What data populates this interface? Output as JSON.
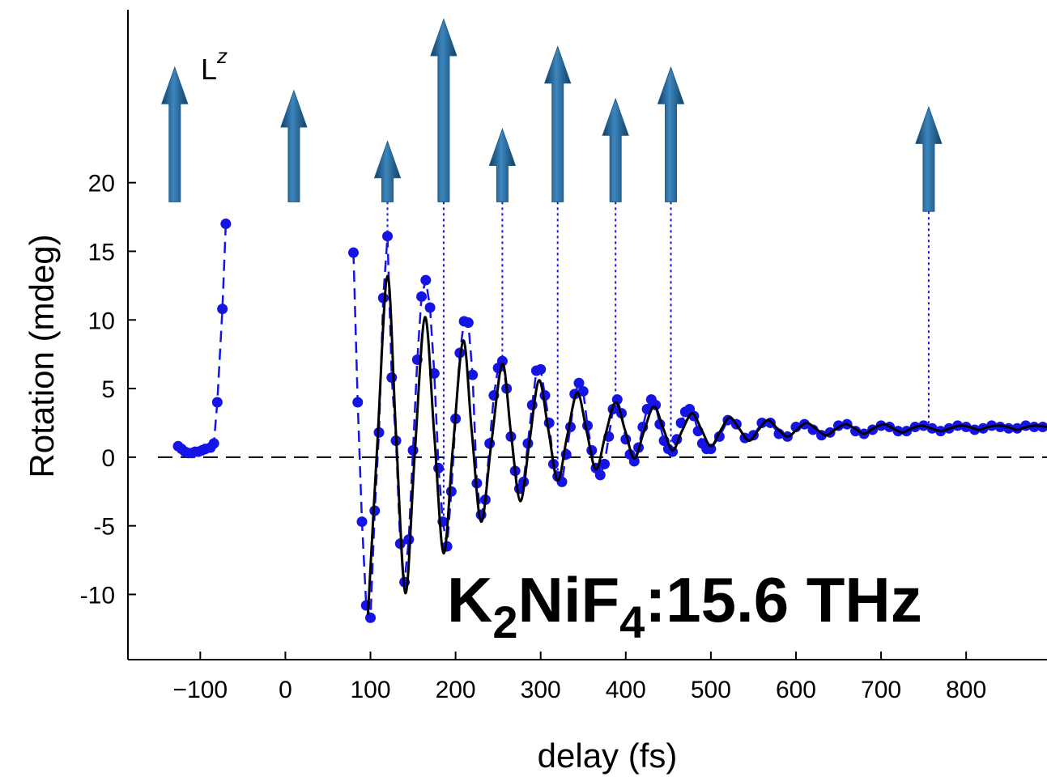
{
  "chart_data": {
    "type": "scatter",
    "x_label": "delay (fs)",
    "y_label": "Rotation (mdeg)",
    "annotation": [
      "K",
      "2",
      "NiF",
      "4",
      ":15.6 THz"
    ],
    "annotation_color": "#0b0b80",
    "arrow_label": [
      "L",
      "z"
    ],
    "arrow_label_color": "#1d72c2",
    "xlim": [
      -185,
      895
    ],
    "ylim": [
      -14.75,
      32.6
    ],
    "xticks": [
      {
        "value": -100,
        "label": "−100"
      },
      0,
      100,
      200,
      300,
      400,
      500,
      600,
      700,
      800
    ],
    "yticks": [
      -10,
      -5,
      0,
      5,
      10,
      15,
      20
    ],
    "zero_line": true,
    "scatter": {
      "color": "#1414e6",
      "connect": "dashed",
      "x": [
        -126,
        -122,
        -118,
        -114,
        -110,
        -106,
        -102,
        -98,
        -94,
        -88,
        -84,
        -80,
        -74,
        -70,
        80,
        85,
        90,
        95,
        100,
        105,
        110,
        115,
        120,
        125,
        130,
        135,
        140,
        145,
        150,
        155,
        160,
        165,
        170,
        175,
        180,
        185,
        190,
        195,
        200,
        205,
        210,
        215,
        220,
        225,
        230,
        235,
        240,
        245,
        250,
        255,
        260,
        265,
        270,
        275,
        280,
        285,
        290,
        295,
        300,
        305,
        310,
        315,
        320,
        325,
        330,
        335,
        340,
        345,
        350,
        355,
        360,
        365,
        370,
        375,
        380,
        385,
        390,
        395,
        400,
        405,
        410,
        415,
        420,
        425,
        430,
        435,
        440,
        445,
        450,
        455,
        460,
        465,
        470,
        475,
        480,
        485,
        490,
        495,
        500,
        510,
        520,
        530,
        540,
        550,
        560,
        570,
        580,
        590,
        600,
        610,
        620,
        630,
        640,
        650,
        660,
        670,
        680,
        690,
        700,
        710,
        720,
        730,
        740,
        750,
        760,
        770,
        780,
        790,
        800,
        810,
        820,
        830,
        840,
        850,
        860,
        870,
        880,
        890
      ],
      "values": [
        0.8,
        0.6,
        0.4,
        0.3,
        0.3,
        0.4,
        0.4,
        0.5,
        0.6,
        0.7,
        1.0,
        4.0,
        10.8,
        17.0,
        14.9,
        4.0,
        -4.7,
        -10.8,
        -11.7,
        -3.9,
        1.8,
        11.6,
        16.1,
        5.8,
        1.2,
        -6.3,
        -9.1,
        -6.0,
        0.5,
        7.1,
        11.7,
        12.9,
        10.9,
        6.1,
        -0.8,
        -4.7,
        -6.5,
        -2.5,
        2.8,
        7.6,
        9.9,
        9.8,
        6.0,
        -1.9,
        -4.2,
        -3.1,
        1.0,
        4.5,
        6.5,
        7.0,
        5.0,
        1.5,
        -1.0,
        -2.3,
        -1.8,
        1.0,
        3.8,
        6.3,
        6.4,
        4.5,
        2.5,
        -0.5,
        -1.4,
        -1.8,
        0.2,
        2.2,
        4.6,
        5.4,
        4.8,
        2.3,
        0.5,
        -0.8,
        -1.3,
        -0.5,
        1.5,
        3.5,
        4.2,
        3.2,
        1.3,
        0.2,
        -0.3,
        0.7,
        2.2,
        3.5,
        4.2,
        3.8,
        2.4,
        1.2,
        0.6,
        0.4,
        1.3,
        2.5,
        3.3,
        3.5,
        3.0,
        1.9,
        1.0,
        0.6,
        0.6,
        1.5,
        2.7,
        2.4,
        1.4,
        1.6,
        2.5,
        2.5,
        1.7,
        1.5,
        2.2,
        2.4,
        2.0,
        1.6,
        1.8,
        2.3,
        2.4,
        1.9,
        1.7,
        2.0,
        2.3,
        2.2,
        1.9,
        1.9,
        2.2,
        2.3,
        2.1,
        1.9,
        2.1,
        2.3,
        2.2,
        2.0,
        2.1,
        2.3,
        2.2,
        2.1,
        2.1,
        2.3,
        2.2,
        2.2
      ]
    },
    "fit": {
      "color": "#000000",
      "x": [
        97,
        108,
        120,
        130,
        141,
        152,
        164,
        175,
        186,
        197,
        209,
        219,
        230,
        242,
        255,
        265,
        276,
        287,
        298,
        309,
        320,
        331,
        343,
        354,
        365,
        376,
        388,
        399,
        410,
        421,
        433,
        444,
        455,
        466,
        478,
        489,
        500,
        511,
        522,
        533,
        545,
        556,
        567,
        578,
        590,
        601,
        612,
        623,
        635,
        646,
        658,
        669,
        680,
        691,
        703,
        714,
        725,
        736,
        748,
        759,
        770,
        781,
        793,
        804,
        815,
        826,
        838,
        849,
        860,
        871,
        883,
        895
      ],
      "values": [
        -11.5,
        0.9,
        13.2,
        1.7,
        -9.9,
        0.2,
        10.2,
        1.6,
        -7.0,
        0.8,
        8.5,
        1.9,
        -4.7,
        1.0,
        6.8,
        1.8,
        -3.2,
        1.2,
        5.6,
        2.0,
        -1.7,
        1.5,
        4.7,
        1.9,
        -0.9,
        1.6,
        4.0,
        2.0,
        -0.1,
        1.8,
        3.7,
        2.1,
        0.5,
        1.9,
        3.2,
        2.0,
        0.8,
        1.9,
        2.9,
        2.1,
        1.2,
        2.0,
        2.7,
        2.1,
        1.5,
        2.0,
        2.5,
        2.1,
        1.6,
        2.0,
        2.4,
        2.1,
        1.7,
        2.1,
        2.4,
        2.1,
        1.8,
        2.1,
        2.3,
        2.1,
        1.9,
        2.1,
        2.3,
        2.2,
        2.0,
        2.2,
        2.3,
        2.2,
        2.0,
        2.2,
        2.3,
        2.2
      ]
    },
    "arrows": {
      "color": "#1c5d8c",
      "x": [
        -130,
        10,
        120,
        186,
        255,
        320,
        388,
        453,
        756
      ],
      "base": [
        18.6,
        18.6,
        18.6,
        18.6,
        18.6,
        18.6,
        18.6,
        18.6,
        17.9
      ],
      "tip": [
        28.4,
        26.7,
        23.0,
        31.9,
        23.9,
        29.9,
        26.1,
        28.4,
        25.5
      ],
      "droplines": [
        false,
        false,
        true,
        true,
        true,
        true,
        true,
        true,
        true
      ]
    }
  }
}
